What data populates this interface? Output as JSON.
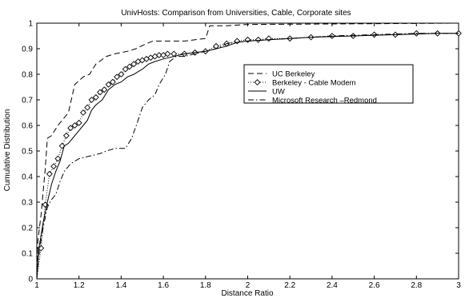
{
  "chart_data": {
    "type": "line",
    "title": "UnivHosts: Comparison from Universities, Cable, Corporate sites",
    "xlabel": "Distance Ratio",
    "ylabel": "Cumulative Distribution",
    "xlim": [
      1,
      3
    ],
    "ylim": [
      0,
      1
    ],
    "xticks": [
      1,
      1.2,
      1.4,
      1.6,
      1.8,
      2,
      2.2,
      2.4,
      2.6,
      2.8,
      3
    ],
    "xtick_labels": [
      "1",
      "1.2",
      "1.4",
      "1.6",
      "1.8",
      "2",
      "2.2",
      "2.4",
      "2.6",
      "2.8",
      "3"
    ],
    "yticks": [
      0,
      0.1,
      0.2,
      0.3,
      0.4,
      0.5,
      0.6,
      0.7,
      0.8,
      0.9,
      1
    ],
    "ytick_labels": [
      "0",
      "0.1",
      "0.2",
      "0.3",
      "0.4",
      "0.5",
      "0.6",
      "0.7",
      "0.8",
      "0.9",
      "1"
    ],
    "grid": false,
    "legend_position": "center-right",
    "series": [
      {
        "name": "UC Berkeley",
        "style": "dashed",
        "color": "#000000",
        "points": [
          [
            1.0,
            0.0
          ],
          [
            1.005,
            0.15
          ],
          [
            1.02,
            0.25
          ],
          [
            1.04,
            0.43
          ],
          [
            1.05,
            0.55
          ],
          [
            1.07,
            0.56
          ],
          [
            1.1,
            0.6
          ],
          [
            1.12,
            0.62
          ],
          [
            1.15,
            0.65
          ],
          [
            1.18,
            0.76
          ],
          [
            1.22,
            0.79
          ],
          [
            1.25,
            0.8
          ],
          [
            1.28,
            0.84
          ],
          [
            1.33,
            0.87
          ],
          [
            1.37,
            0.88
          ],
          [
            1.43,
            0.89
          ],
          [
            1.47,
            0.9
          ],
          [
            1.52,
            0.92
          ],
          [
            1.55,
            0.93
          ],
          [
            1.7,
            0.93
          ],
          [
            1.8,
            0.94
          ],
          [
            1.82,
            0.99
          ],
          [
            1.9,
            0.99
          ],
          [
            2.0,
            0.995
          ],
          [
            3.0,
            1.0
          ]
        ]
      },
      {
        "name": "Berkeley - Cable Modem",
        "style": "dotted-diamond",
        "color": "#000000",
        "points": [
          [
            1.0,
            0.0
          ],
          [
            1.02,
            0.12
          ],
          [
            1.04,
            0.29
          ],
          [
            1.06,
            0.41
          ],
          [
            1.08,
            0.44
          ],
          [
            1.1,
            0.47
          ],
          [
            1.12,
            0.52
          ],
          [
            1.14,
            0.56
          ],
          [
            1.16,
            0.59
          ],
          [
            1.18,
            0.6
          ],
          [
            1.2,
            0.61
          ],
          [
            1.22,
            0.65
          ],
          [
            1.24,
            0.67
          ],
          [
            1.26,
            0.7
          ],
          [
            1.28,
            0.71
          ],
          [
            1.3,
            0.73
          ],
          [
            1.32,
            0.74
          ],
          [
            1.34,
            0.76
          ],
          [
            1.36,
            0.77
          ],
          [
            1.38,
            0.79
          ],
          [
            1.4,
            0.8
          ],
          [
            1.42,
            0.82
          ],
          [
            1.44,
            0.83
          ],
          [
            1.46,
            0.84
          ],
          [
            1.48,
            0.85
          ],
          [
            1.5,
            0.855
          ],
          [
            1.52,
            0.86
          ],
          [
            1.54,
            0.865
          ],
          [
            1.56,
            0.87
          ],
          [
            1.58,
            0.875
          ],
          [
            1.6,
            0.875
          ],
          [
            1.62,
            0.88
          ],
          [
            1.65,
            0.88
          ],
          [
            1.7,
            0.88
          ],
          [
            1.75,
            0.885
          ],
          [
            1.8,
            0.89
          ],
          [
            1.85,
            0.91
          ],
          [
            1.9,
            0.92
          ],
          [
            1.95,
            0.93
          ],
          [
            2.0,
            0.935
          ],
          [
            2.05,
            0.935
          ],
          [
            2.1,
            0.94
          ],
          [
            2.2,
            0.94
          ],
          [
            2.3,
            0.945
          ],
          [
            2.4,
            0.95
          ],
          [
            2.5,
            0.95
          ],
          [
            2.6,
            0.955
          ],
          [
            2.7,
            0.955
          ],
          [
            2.8,
            0.96
          ],
          [
            2.9,
            0.96
          ],
          [
            3.0,
            0.96
          ]
        ]
      },
      {
        "name": "UW",
        "style": "solid",
        "color": "#000000",
        "points": [
          [
            1.0,
            0.0
          ],
          [
            1.01,
            0.12
          ],
          [
            1.03,
            0.22
          ],
          [
            1.05,
            0.3
          ],
          [
            1.07,
            0.37
          ],
          [
            1.09,
            0.42
          ],
          [
            1.11,
            0.46
          ],
          [
            1.13,
            0.52
          ],
          [
            1.15,
            0.53
          ],
          [
            1.17,
            0.55
          ],
          [
            1.2,
            0.58
          ],
          [
            1.22,
            0.6
          ],
          [
            1.24,
            0.62
          ],
          [
            1.26,
            0.66
          ],
          [
            1.28,
            0.68
          ],
          [
            1.31,
            0.7
          ],
          [
            1.34,
            0.74
          ],
          [
            1.37,
            0.76
          ],
          [
            1.4,
            0.77
          ],
          [
            1.43,
            0.79
          ],
          [
            1.46,
            0.8
          ],
          [
            1.5,
            0.82
          ],
          [
            1.53,
            0.84
          ],
          [
            1.56,
            0.85
          ],
          [
            1.6,
            0.86
          ],
          [
            1.65,
            0.87
          ],
          [
            1.7,
            0.88
          ],
          [
            1.75,
            0.885
          ],
          [
            1.8,
            0.89
          ],
          [
            1.85,
            0.9
          ],
          [
            1.9,
            0.91
          ],
          [
            1.95,
            0.925
          ],
          [
            2.0,
            0.93
          ],
          [
            2.1,
            0.935
          ],
          [
            2.3,
            0.945
          ],
          [
            2.5,
            0.95
          ],
          [
            2.7,
            0.955
          ],
          [
            2.9,
            0.96
          ],
          [
            3.0,
            0.96
          ]
        ]
      },
      {
        "name": "Microsoft Research –Redmond",
        "style": "dashdot",
        "color": "#000000",
        "points": [
          [
            1.0,
            0.0
          ],
          [
            1.01,
            0.1
          ],
          [
            1.03,
            0.2
          ],
          [
            1.05,
            0.28
          ],
          [
            1.07,
            0.31
          ],
          [
            1.09,
            0.33
          ],
          [
            1.11,
            0.38
          ],
          [
            1.13,
            0.42
          ],
          [
            1.16,
            0.45
          ],
          [
            1.2,
            0.47
          ],
          [
            1.25,
            0.48
          ],
          [
            1.3,
            0.49
          ],
          [
            1.33,
            0.5
          ],
          [
            1.37,
            0.51
          ],
          [
            1.42,
            0.51
          ],
          [
            1.45,
            0.55
          ],
          [
            1.48,
            0.62
          ],
          [
            1.5,
            0.67
          ],
          [
            1.53,
            0.7
          ],
          [
            1.56,
            0.72
          ],
          [
            1.58,
            0.76
          ],
          [
            1.61,
            0.8
          ],
          [
            1.63,
            0.85
          ],
          [
            1.66,
            0.87
          ],
          [
            1.7,
            0.87
          ],
          [
            1.75,
            0.88
          ],
          [
            1.8,
            0.89
          ],
          [
            1.85,
            0.9
          ],
          [
            1.9,
            0.92
          ],
          [
            2.0,
            0.93
          ],
          [
            2.2,
            0.94
          ],
          [
            2.4,
            0.95
          ],
          [
            2.6,
            0.955
          ],
          [
            2.8,
            0.96
          ],
          [
            3.0,
            0.96
          ]
        ]
      }
    ]
  }
}
